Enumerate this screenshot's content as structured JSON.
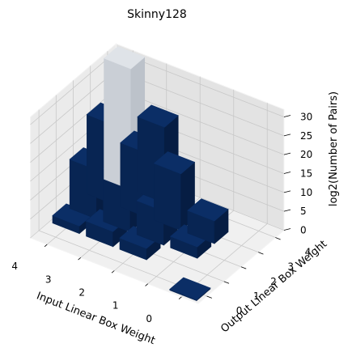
{
  "chart_data": {
    "type": "bar3d",
    "title": "Skinny128",
    "xlabel": "Input Linear Box Weight",
    "ylabel": "Output Linear Box Weight",
    "zlabel": "log2(Number of Pairs)",
    "x_ticks": [
      "0",
      "1",
      "2",
      "3",
      "4"
    ],
    "y_ticks": [
      "0",
      "1",
      "2",
      "3",
      "4"
    ],
    "z_ticks": [
      "0",
      "5",
      "10",
      "15",
      "20",
      "25",
      "30"
    ],
    "xlim": [
      0,
      5
    ],
    "ylim": [
      0,
      5
    ],
    "zlim": [
      0,
      32
    ],
    "grid": true,
    "colormap": "Blues",
    "bars": [
      {
        "input_weight": 0,
        "output_weight": 0,
        "log2_pairs": 0
      },
      {
        "input_weight": 1,
        "output_weight": 2,
        "log2_pairs": 3
      },
      {
        "input_weight": 1,
        "output_weight": 3,
        "log2_pairs": 6
      },
      {
        "input_weight": 2,
        "output_weight": 1,
        "log2_pairs": 3
      },
      {
        "input_weight": 2,
        "output_weight": 2,
        "log2_pairs": 9
      },
      {
        "input_weight": 2,
        "output_weight": 3,
        "log2_pairs": 15
      },
      {
        "input_weight": 3,
        "output_weight": 1,
        "log2_pairs": 4
      },
      {
        "input_weight": 3,
        "output_weight": 2,
        "log2_pairs": 14
      },
      {
        "input_weight": 3,
        "output_weight": 3,
        "log2_pairs": 17
      },
      {
        "input_weight": 3,
        "output_weight": 4,
        "log2_pairs": 20
      },
      {
        "input_weight": 4,
        "output_weight": 1,
        "log2_pairs": 2
      },
      {
        "input_weight": 4,
        "output_weight": 2,
        "log2_pairs": 13
      },
      {
        "input_weight": 4,
        "output_weight": 3,
        "log2_pairs": 21
      },
      {
        "input_weight": 4,
        "output_weight": 4,
        "log2_pairs": 32
      }
    ]
  }
}
